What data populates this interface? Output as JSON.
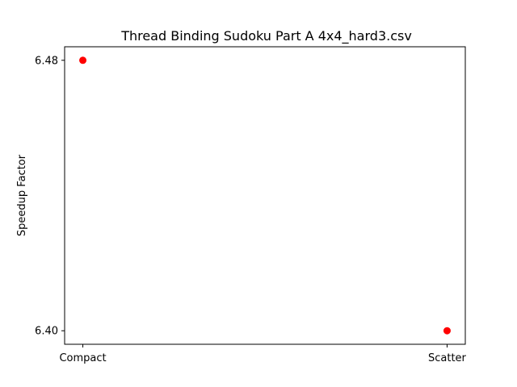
{
  "chart_data": {
    "type": "scatter",
    "title": "Thread Binding Sudoku Part A 4x4_hard3.csv",
    "xlabel": "",
    "ylabel": "Speedup Factor",
    "categories": [
      "Compact",
      "Scatter"
    ],
    "values": [
      6.48,
      6.4
    ],
    "y_ticks": [
      "6.40",
      "6.48"
    ],
    "ylim": [
      6.396,
      6.484
    ],
    "grid": false,
    "marker_color": "#ff0000"
  }
}
